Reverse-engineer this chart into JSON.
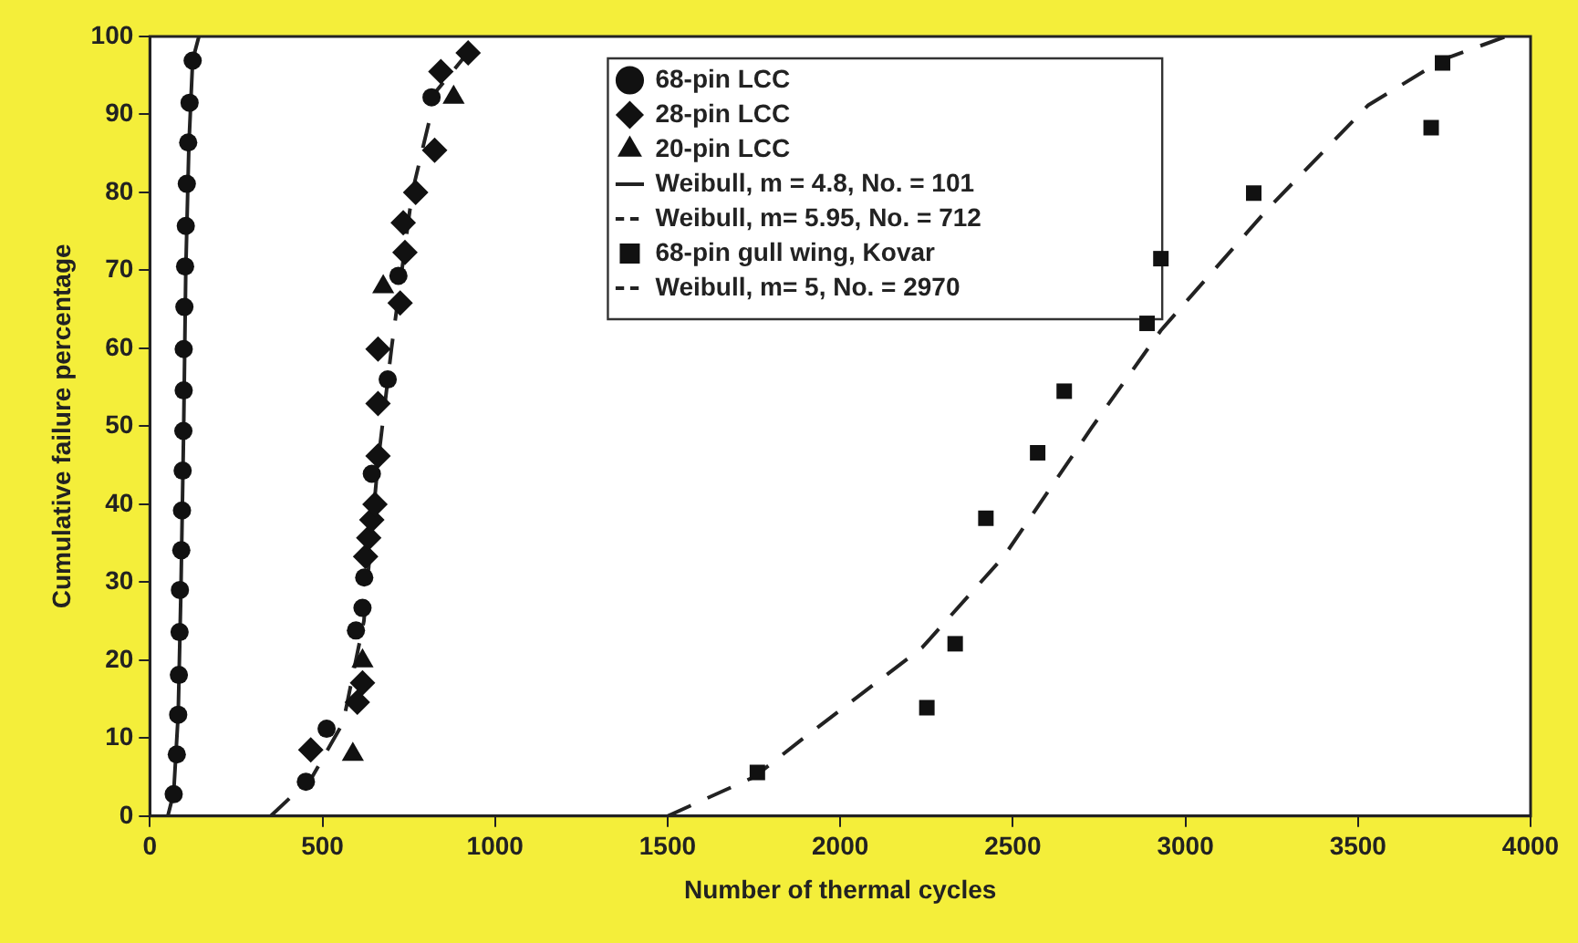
{
  "chart_data": {
    "type": "scatter",
    "xlabel": "Number of thermal cycles",
    "ylabel": "Cumulative failure percentage",
    "xlim": [
      0,
      4000
    ],
    "xticks": [
      0,
      500,
      1000,
      1500,
      2000,
      2500,
      3000,
      3500,
      4000
    ],
    "ylim": [
      0,
      100
    ],
    "yticks": [
      0,
      10,
      20,
      30,
      40,
      50,
      60,
      70,
      80,
      90,
      100
    ],
    "legend": "top",
    "series": [
      {
        "name": "68-pin LCC",
        "type": "scatter",
        "marker": "circle",
        "color": "#111111",
        "x": [
          69,
          78,
          82,
          84,
          86,
          87,
          91,
          93,
          95,
          97,
          98,
          98,
          100,
          102,
          104,
          107,
          111,
          115,
          124,
          452,
          512,
          597,
          616,
          621,
          643,
          689,
          720,
          816
        ],
        "values": [
          2.8,
          7.9,
          13.0,
          18.1,
          23.6,
          29.0,
          34.1,
          39.2,
          44.3,
          49.4,
          54.6,
          59.9,
          65.3,
          70.5,
          75.7,
          81.1,
          86.4,
          91.5,
          96.9,
          4.4,
          11.2,
          23.8,
          26.7,
          30.6,
          43.9,
          56.0,
          69.3,
          92.2
        ]
      },
      {
        "name": "28-pin LCC",
        "type": "scatter",
        "marker": "diamond",
        "color": "#111111",
        "x": [
          466,
          601,
          616,
          625,
          634,
          643,
          652,
          661,
          661,
          661,
          725,
          739,
          734,
          770,
          825,
          843,
          922
        ],
        "values": [
          8.5,
          14.6,
          17.1,
          33.3,
          35.7,
          38.0,
          40.0,
          46.2,
          52.9,
          59.9,
          65.8,
          72.3,
          76.1,
          80.0,
          85.4,
          95.5,
          97.9
        ]
      },
      {
        "name": "20-pin LCC",
        "type": "scatter",
        "marker": "triangle",
        "color": "#111111",
        "x": [
          588,
          616,
          676,
          880
        ],
        "values": [
          7.9,
          19.9,
          67.9,
          92.2
        ]
      },
      {
        "name": "Weibull, m = 4.8, No. = 101",
        "type": "line",
        "line_style": "solid",
        "color": "#222222",
        "x": [
          52,
          69,
          82,
          90,
          98,
          104,
          113,
          124,
          142
        ],
        "values": [
          0,
          3,
          13,
          29,
          50,
          70,
          86,
          97,
          100
        ]
      },
      {
        "name": "Weibull, m= 5.95, No. = 712",
        "type": "line",
        "line_style": "dashed",
        "color": "#222222",
        "x": [
          350,
          470,
          560,
          620,
          660,
          700,
          760,
          830,
          960
        ],
        "values": [
          0,
          5,
          12,
          25,
          45,
          60,
          80,
          93,
          100
        ]
      },
      {
        "name": "68-pin gull wing, Kovar",
        "type": "scatter",
        "marker": "square",
        "color": "#111111",
        "x": [
          1760,
          2251,
          2333,
          2422,
          2572,
          2649,
          2889,
          2929,
          3198,
          3712,
          3745
        ],
        "values": [
          5.6,
          13.9,
          22.1,
          38.2,
          46.6,
          54.5,
          63.2,
          71.5,
          79.9,
          88.3,
          96.6
        ]
      },
      {
        "name": "Weibull, m= 5, No. = 2970",
        "type": "line",
        "line_style": "dashed",
        "color": "#222222",
        "x": [
          1500,
          1750,
          1891,
          2237,
          2474,
          2728,
          2929,
          3239,
          3530,
          3749,
          3929
        ],
        "values": [
          0,
          5,
          9.9,
          21.6,
          33.3,
          49.8,
          62.3,
          77.9,
          91.2,
          97.1,
          100
        ]
      }
    ]
  }
}
